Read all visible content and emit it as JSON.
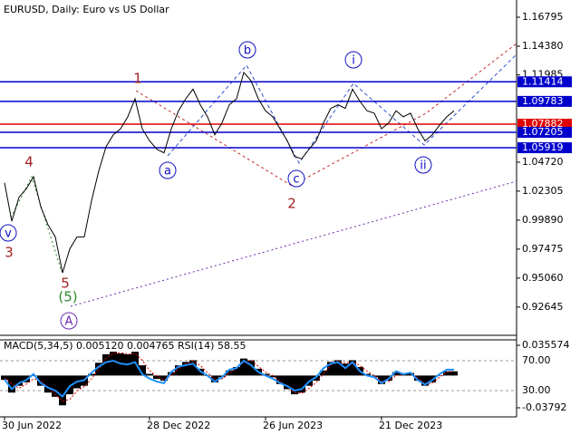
{
  "chart_data": [
    {
      "type": "line",
      "title": "EURUSD, Daily:  Euro vs US Dollar",
      "color": "#000000",
      "categories": [
        "30 Jun 2022",
        null,
        null,
        null,
        null,
        null,
        null,
        null,
        null,
        null,
        null,
        null,
        null,
        null,
        null,
        null,
        null,
        null,
        null,
        null,
        "28 Dec 2022",
        null,
        null,
        null,
        null,
        null,
        null,
        null,
        null,
        null,
        null,
        null,
        null,
        null,
        null,
        null,
        "26 Jun 2023",
        null,
        null,
        null,
        null,
        null,
        null,
        null,
        null,
        null,
        null,
        null,
        null,
        null,
        null,
        null,
        "21 Dec 2023",
        null,
        null,
        null,
        null,
        null,
        null,
        null,
        null,
        null,
        null
      ],
      "values": [
        1.03,
        0.998,
        1.018,
        1.025,
        1.035,
        1.01,
        0.995,
        0.985,
        0.955,
        0.975,
        0.985,
        0.985,
        1.015,
        1.04,
        1.06,
        1.07,
        1.075,
        1.085,
        1.1,
        1.075,
        1.065,
        1.058,
        1.055,
        1.075,
        1.09,
        1.1,
        1.108,
        1.095,
        1.085,
        1.07,
        1.08,
        1.095,
        1.1,
        1.122,
        1.115,
        1.1,
        1.09,
        1.085,
        1.075,
        1.065,
        1.052,
        1.05,
        1.058,
        1.065,
        1.08,
        1.092,
        1.095,
        1.092,
        1.108,
        1.098,
        1.09,
        1.088,
        1.075,
        1.08,
        1.09,
        1.085,
        1.088,
        1.075,
        1.065,
        1.07,
        1.078,
        1.085,
        1.09
      ],
      "ylim": [
        0.90295,
        1.18229
      ],
      "yticks": [
        0.92645,
        {
          "value": 0.9506,
          "label": "0.95060"
        },
        0.97475,
        {
          "value": 0.9989,
          "label": "0.99890"
        },
        1.02305,
        {
          "value": 1.0472,
          "label": "1.04720"
        },
        1.11985,
        {
          "value": 1.1438,
          "label": "1.14380"
        },
        1.16795
      ],
      "levels": [
        {
          "value": 1.11414,
          "color": "#0000cc"
        },
        {
          "value": 1.09783,
          "color": "#0000cc"
        },
        {
          "value": 1.07882,
          "color": "#e00000"
        },
        {
          "value": 1.07205,
          "color": "#0000cc"
        },
        {
          "value": 1.05919,
          "color": "#0000cc"
        }
      ],
      "annotations": [
        "1",
        "b",
        "i",
        "a",
        "c",
        "ii",
        "2",
        "4",
        "3",
        "v",
        "5",
        "(5)",
        "A"
      ]
    },
    {
      "type": "indicator",
      "title": "MACD(5,34,5) 0.005120 0.004765 RSI(14) 58.55",
      "ylim": [
        -0.04857,
        0.04196
      ],
      "yticks": [
        -0.03792,
        0.035574
      ],
      "y2lim": [
        -5.2,
        97.9
      ],
      "y2ticks": [
        {
          "value": 30,
          "label": "30.00"
        },
        {
          "value": 70,
          "label": "70.00"
        }
      ],
      "series": [
        {
          "type": "bar",
          "color": "#000000",
          "values": [
            -0.005,
            -0.02,
            -0.012,
            -0.008,
            0.0,
            -0.012,
            -0.02,
            -0.025,
            -0.035,
            -0.022,
            -0.015,
            -0.012,
            0.002,
            0.015,
            0.025,
            0.028,
            0.026,
            0.025,
            0.028,
            0.012,
            0.002,
            -0.004,
            -0.006,
            0.004,
            0.012,
            0.016,
            0.018,
            0.008,
            0.0,
            -0.008,
            -0.002,
            0.006,
            0.01,
            0.02,
            0.018,
            0.008,
            0.002,
            -0.002,
            -0.01,
            -0.016,
            -0.022,
            -0.02,
            -0.012,
            -0.006,
            0.006,
            0.016,
            0.018,
            0.014,
            0.018,
            0.01,
            0.002,
            -0.002,
            -0.01,
            -0.006,
            0.004,
            0.002,
            0.003,
            -0.006,
            -0.012,
            -0.008,
            0.0,
            0.005,
            0.005
          ]
        },
        {
          "type": "line",
          "dash": true,
          "color": "#e00000",
          "values": [
            -0.003,
            -0.01,
            -0.015,
            -0.01,
            -0.004,
            -0.006,
            -0.014,
            -0.022,
            -0.03,
            -0.028,
            -0.018,
            -0.013,
            -0.004,
            0.008,
            0.02,
            0.026,
            0.027,
            0.025,
            0.026,
            0.018,
            0.006,
            -0.001,
            -0.005,
            0.0,
            0.008,
            0.014,
            0.017,
            0.012,
            0.003,
            -0.004,
            -0.004,
            0.003,
            0.008,
            0.016,
            0.018,
            0.011,
            0.004,
            0.0,
            -0.007,
            -0.013,
            -0.02,
            -0.021,
            -0.015,
            -0.008,
            0.002,
            0.012,
            0.017,
            0.015,
            0.016,
            0.012,
            0.005,
            0.0,
            -0.007,
            -0.007,
            0.0,
            0.002,
            0.003,
            -0.003,
            -0.01,
            -0.009,
            -0.002,
            0.004,
            0.005
          ]
        },
        {
          "type": "line",
          "axis": "y2",
          "color": "#1e90ff",
          "values": [
            45,
            32,
            40,
            44,
            52,
            40,
            34,
            30,
            22,
            36,
            42,
            44,
            54,
            62,
            68,
            70,
            66,
            65,
            68,
            52,
            46,
            42,
            40,
            55,
            62,
            64,
            66,
            56,
            50,
            42,
            48,
            58,
            60,
            70,
            64,
            55,
            50,
            46,
            40,
            36,
            30,
            32,
            42,
            48,
            60,
            66,
            68,
            60,
            68,
            56,
            50,
            48,
            40,
            46,
            56,
            52,
            54,
            44,
            38,
            44,
            52,
            58,
            58
          ]
        }
      ]
    }
  ]
}
